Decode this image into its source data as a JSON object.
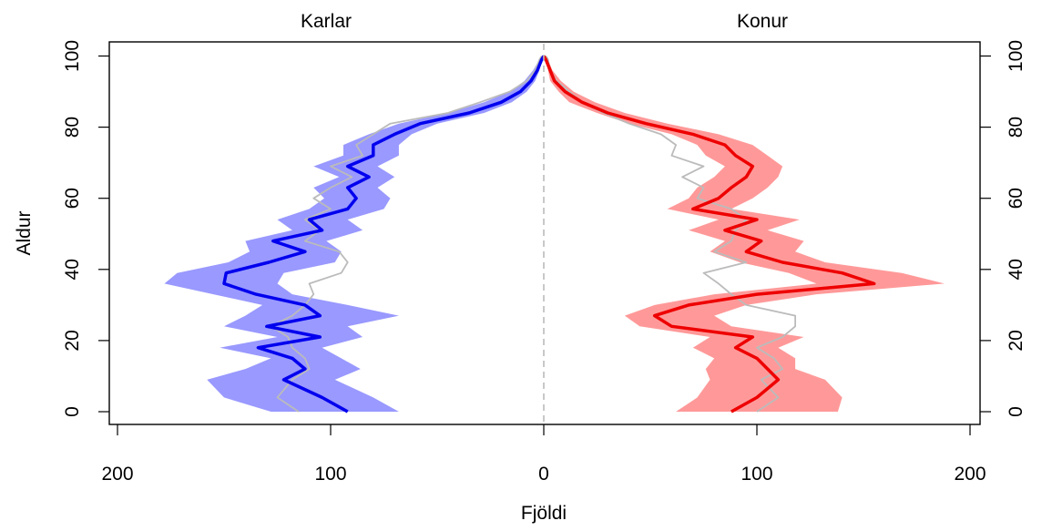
{
  "chart_data": {
    "type": "line",
    "subtype": "population-pyramid",
    "panels": {
      "left": "Karlar",
      "right": "Konur"
    },
    "xlabel": "Fjöldi",
    "ylabel": "Aldur",
    "x_ticks": [
      "200",
      "100",
      "0",
      "100",
      "200"
    ],
    "y_ticks": [
      "0",
      "20",
      "40",
      "60",
      "80",
      "100"
    ],
    "x_range_each_side": [
      0,
      200
    ],
    "y_range": [
      0,
      100
    ],
    "center_line": {
      "style": "dashed",
      "color": "#bbbbbb"
    },
    "colors": {
      "male_line": "#0000ee",
      "male_band": "#9999ff",
      "female_line": "#ee0000",
      "female_band": "#ff9999",
      "reference": "#bbbbbb"
    },
    "ages": [
      0,
      4,
      9,
      12,
      15,
      18,
      21,
      24,
      27,
      30,
      33,
      36,
      39,
      42,
      45,
      48,
      51,
      54,
      57,
      60,
      63,
      66,
      69,
      72,
      75,
      78,
      81,
      84,
      87,
      90,
      93,
      96,
      99,
      100
    ],
    "male": {
      "median": [
        92,
        104,
        122,
        112,
        118,
        134,
        105,
        130,
        105,
        112,
        135,
        150,
        149,
        129,
        112,
        127,
        104,
        110,
        92,
        88,
        92,
        82,
        92,
        80,
        80,
        70,
        58,
        35,
        20,
        11,
        6,
        3,
        1,
        0
      ],
      "lower": [
        68,
        80,
        98,
        86,
        95,
        104,
        85,
        92,
        68,
        92,
        118,
        125,
        122,
        98,
        95,
        102,
        85,
        92,
        75,
        72,
        78,
        70,
        78,
        68,
        68,
        62,
        50,
        28,
        15,
        8,
        4,
        2,
        1,
        0
      ],
      "upper": [
        128,
        150,
        158,
        140,
        128,
        152,
        125,
        150,
        140,
        132,
        155,
        178,
        172,
        148,
        138,
        140,
        118,
        125,
        110,
        103,
        108,
        96,
        108,
        94,
        94,
        82,
        68,
        45,
        28,
        16,
        9,
        5,
        2,
        1
      ],
      "reference": [
        115,
        125,
        118,
        110,
        112,
        118,
        120,
        128,
        118,
        112,
        108,
        110,
        95,
        92,
        96,
        112,
        105,
        112,
        100,
        108,
        100,
        90,
        100,
        85,
        88,
        80,
        72,
        45,
        30,
        16,
        8,
        4,
        2,
        1
      ]
    },
    "female": {
      "median": [
        88,
        100,
        110,
        105,
        100,
        90,
        98,
        60,
        52,
        68,
        100,
        155,
        140,
        112,
        95,
        102,
        85,
        100,
        70,
        82,
        88,
        95,
        98,
        90,
        85,
        70,
        48,
        30,
        18,
        10,
        5,
        3,
        1,
        0
      ],
      "lower": [
        62,
        72,
        78,
        76,
        80,
        70,
        78,
        45,
        38,
        52,
        80,
        128,
        115,
        92,
        78,
        85,
        68,
        82,
        58,
        68,
        72,
        80,
        85,
        76,
        72,
        60,
        40,
        25,
        12,
        7,
        3,
        2,
        1,
        0
      ],
      "upper": [
        138,
        140,
        132,
        118,
        118,
        110,
        122,
        88,
        80,
        95,
        128,
        188,
        168,
        132,
        118,
        122,
        105,
        120,
        88,
        98,
        105,
        110,
        112,
        105,
        98,
        82,
        58,
        38,
        24,
        14,
        8,
        4,
        2,
        1
      ],
      "reference": [
        100,
        110,
        102,
        112,
        108,
        100,
        112,
        118,
        118,
        95,
        88,
        82,
        75,
        95,
        80,
        88,
        90,
        95,
        88,
        72,
        75,
        65,
        75,
        60,
        62,
        55,
        40,
        28,
        18,
        12,
        6,
        3,
        2,
        1
      ]
    }
  }
}
